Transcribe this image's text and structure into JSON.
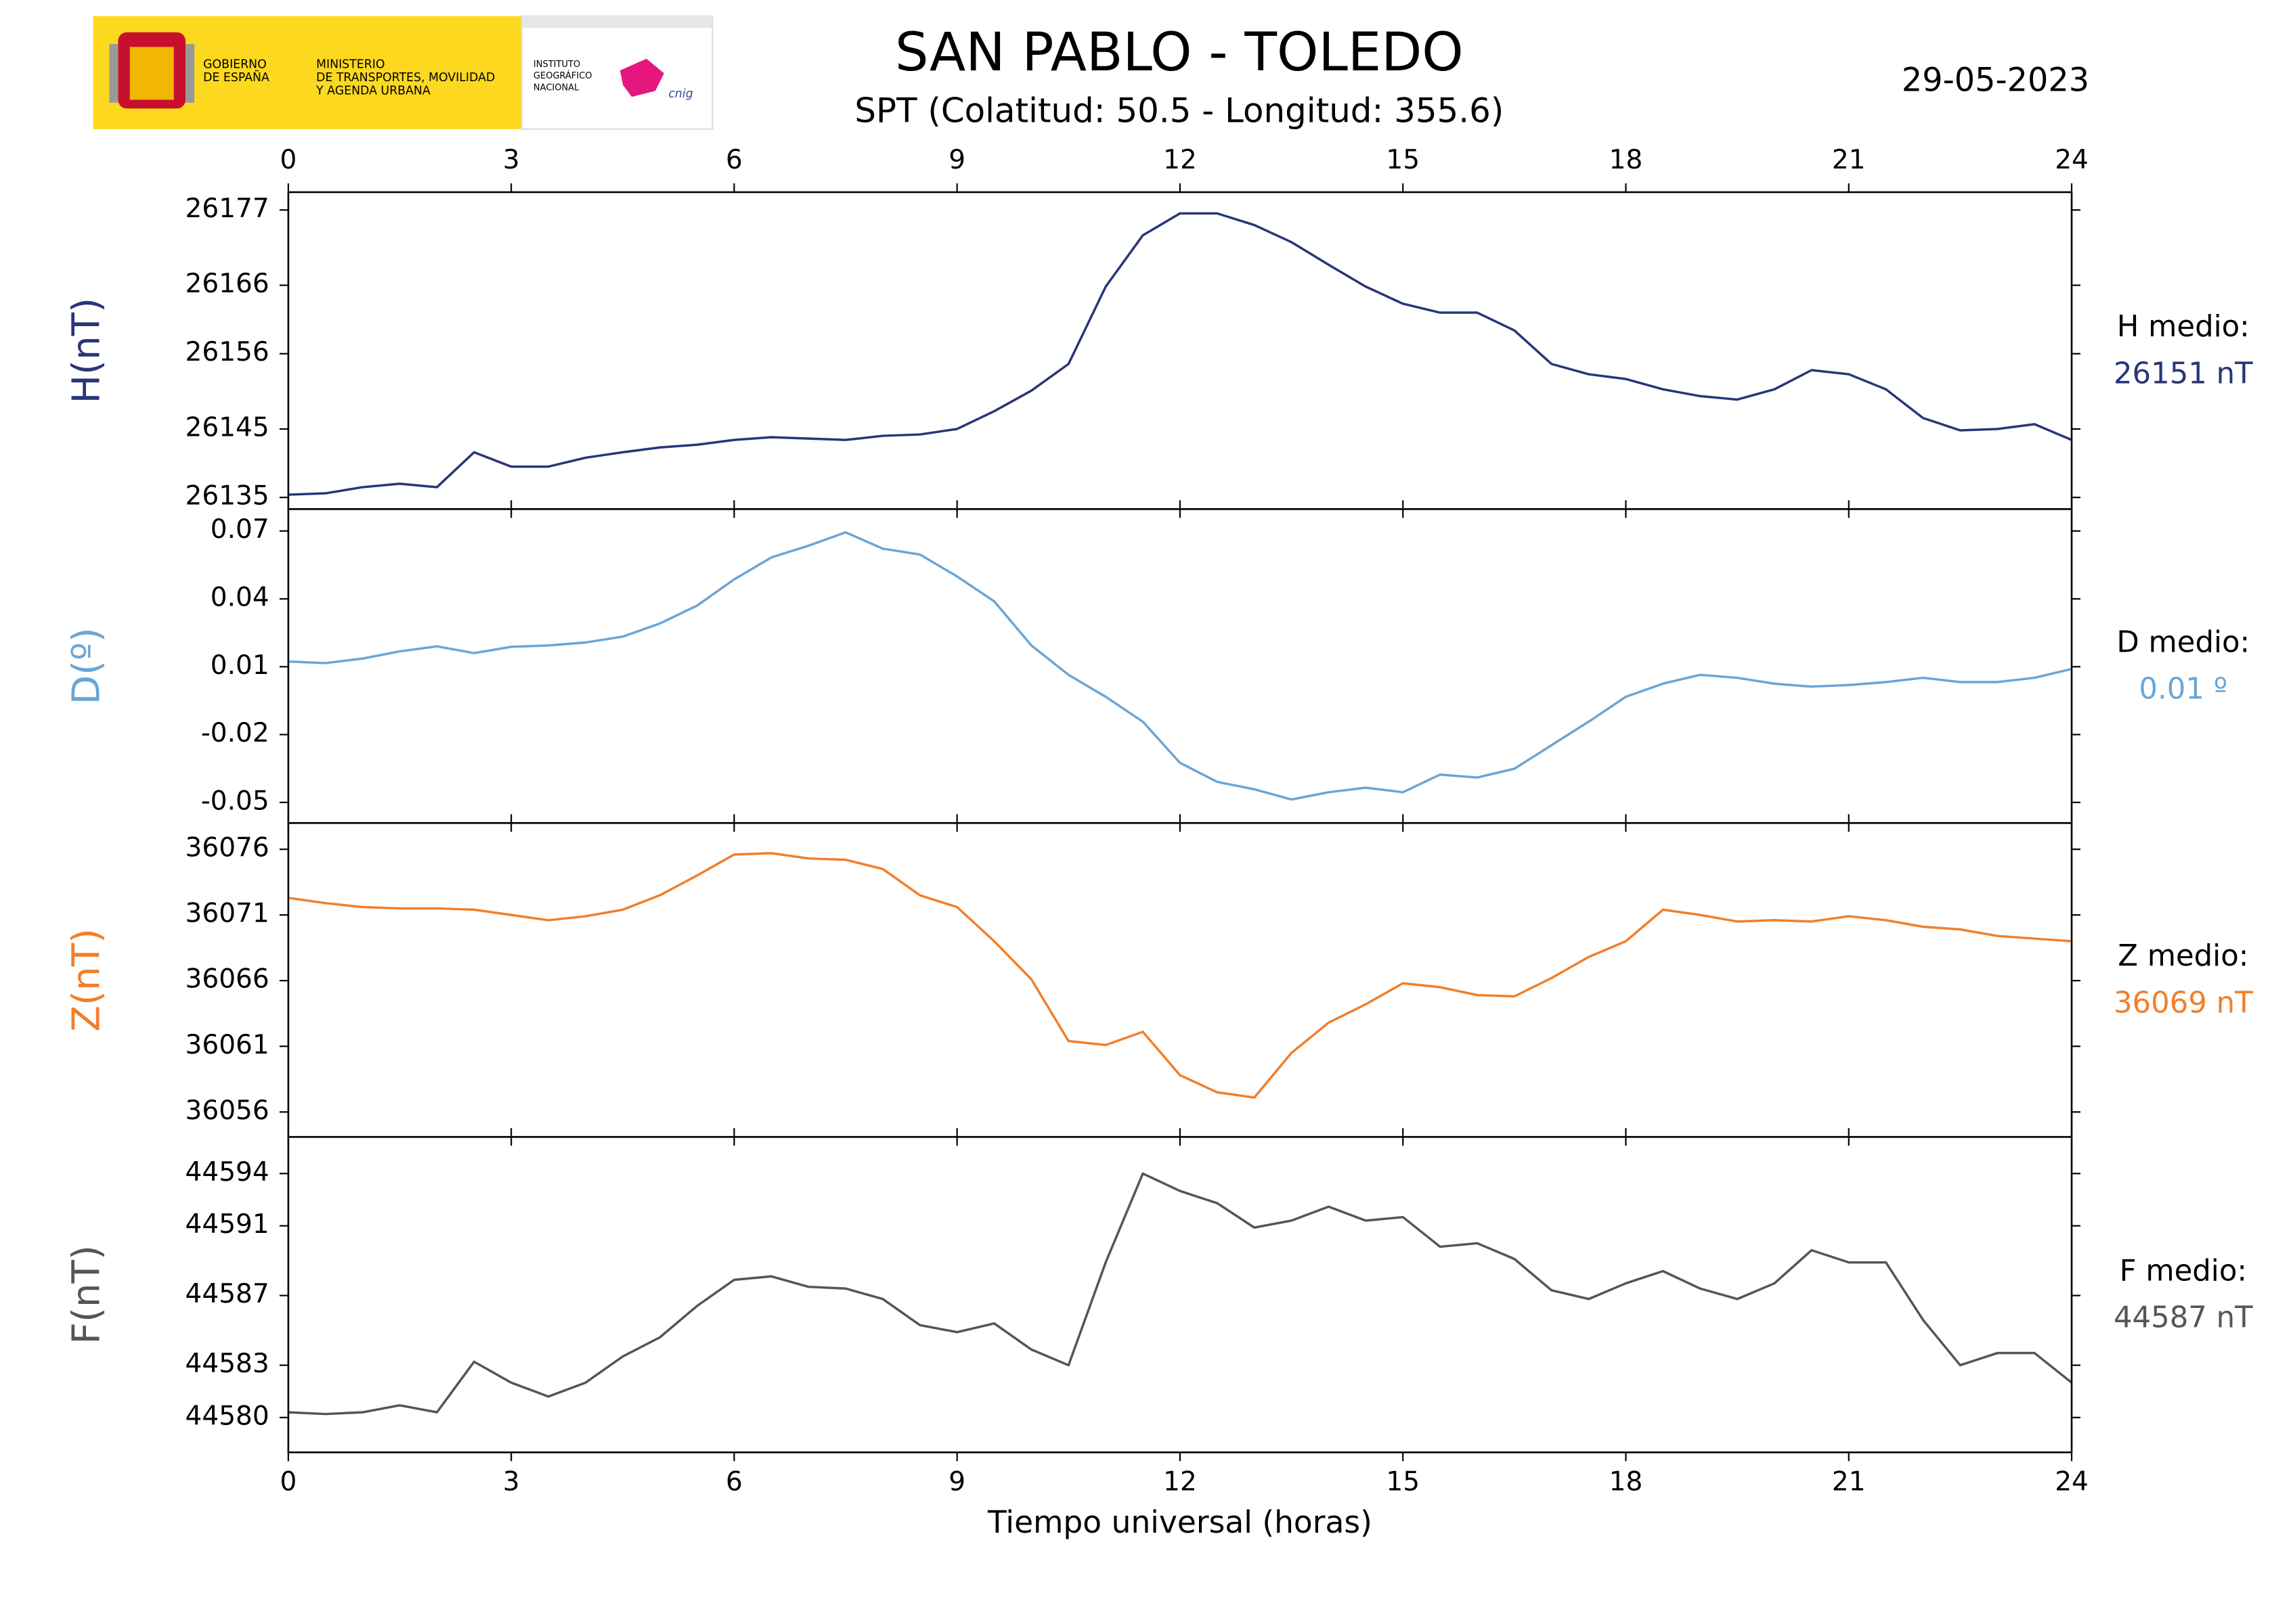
{
  "header": {
    "title": "SAN PABLO - TOLEDO",
    "subtitle": "SPT (Colatitud: 50.5 - Longitud: 355.6)",
    "date": "29-05-2023",
    "logo": {
      "government": [
        "GOBIERNO",
        "DE ESPAÑA"
      ],
      "ministry": [
        "MINISTERIO",
        "DE TRANSPORTES, MOVILIDAD",
        "Y AGENDA URBANA"
      ],
      "institute": [
        "INSTITUTO",
        "GEOGRÁFICO",
        "NACIONAL"
      ],
      "brand": "cnig"
    }
  },
  "chart_data": [
    {
      "type": "line",
      "ylabel": "H(nT)",
      "mean_label": "H medio:",
      "mean_value": "26151 nT",
      "color": "#283578",
      "xlim": [
        0,
        24
      ],
      "xticks": [
        0,
        3,
        6,
        9,
        12,
        15,
        18,
        21,
        24
      ],
      "ylim": [
        26133.3,
        26179.6
      ],
      "yticks": [
        26135,
        26145,
        26156,
        26166,
        26177
      ],
      "x": [
        0,
        0.5,
        1,
        1.5,
        2,
        2.5,
        3,
        3.5,
        4,
        4.5,
        5,
        5.5,
        6,
        6.5,
        7,
        7.5,
        8,
        8.5,
        9,
        9.5,
        10,
        10.5,
        11,
        11.5,
        12,
        12.5,
        13,
        13.5,
        14,
        14.5,
        15,
        15.5,
        16,
        16.5,
        17,
        17.5,
        18,
        18.5,
        19,
        19.5,
        20,
        20.5,
        21,
        21.5,
        22,
        22.5,
        23,
        23.5,
        24
      ],
      "values": [
        26135.4,
        26135.6,
        26136.5,
        26137,
        26136.5,
        26141.6,
        26139.5,
        26139.5,
        26140.8,
        26141.6,
        26142.3,
        26142.7,
        26143.4,
        26143.8,
        26143.6,
        26143.4,
        26144,
        26144.2,
        26145,
        26147.6,
        26150.6,
        26154.5,
        26165.8,
        26173.3,
        26176.5,
        26176.5,
        26174.8,
        26172.3,
        26169,
        26165.8,
        26163.3,
        26162,
        26162,
        26159.4,
        26154.5,
        26153,
        26152.3,
        26150.8,
        26149.8,
        26149.3,
        26150.8,
        26153.6,
        26153,
        26150.8,
        26146.6,
        26144.8,
        26145,
        26145.7,
        26143.4
      ]
    },
    {
      "type": "line",
      "ylabel": "D(º)",
      "mean_label": "D medio:",
      "mean_value": "0.01 º",
      "color": "#6aa5d6",
      "xlim": [
        0,
        24
      ],
      "xticks": [
        0,
        3,
        6,
        9,
        12,
        15,
        18,
        21,
        24
      ],
      "ylim": [
        -0.0591,
        0.0797
      ],
      "yticks": [
        -0.05,
        -0.02,
        0.01,
        0.04,
        0.07
      ],
      "x": [
        0,
        0.5,
        1,
        1.5,
        2,
        2.5,
        3,
        3.5,
        4,
        4.5,
        5,
        5.5,
        6,
        6.5,
        7,
        7.5,
        8,
        8.5,
        9,
        9.5,
        10,
        10.5,
        11,
        11.5,
        12,
        12.5,
        13,
        13.5,
        14,
        14.5,
        15,
        15.5,
        16,
        16.5,
        17,
        17.5,
        18,
        18.5,
        19,
        19.5,
        20,
        20.5,
        21,
        21.5,
        22,
        22.5,
        23,
        23.5,
        24
      ],
      "values": [
        0.0123,
        0.0116,
        0.0136,
        0.0168,
        0.019,
        0.016,
        0.0188,
        0.0194,
        0.0207,
        0.0233,
        0.0291,
        0.037,
        0.0486,
        0.0583,
        0.0635,
        0.0694,
        0.0622,
        0.0596,
        0.0499,
        0.0389,
        0.0194,
        0.0064,
        -0.0033,
        -0.0143,
        -0.0325,
        -0.0409,
        -0.0442,
        -0.0487,
        -0.0455,
        -0.0435,
        -0.0455,
        -0.0377,
        -0.039,
        -0.0351,
        -0.0247,
        -0.0143,
        -0.0033,
        0.0025,
        0.0064,
        0.0051,
        0.0025,
        0.0012,
        0.0019,
        0.0032,
        0.0051,
        0.0032,
        0.0032,
        0.0051,
        0.009
      ]
    },
    {
      "type": "line",
      "ylabel": "Z(nT)",
      "mean_label": "Z medio:",
      "mean_value": "36069 nT",
      "color": "#f07f2a",
      "xlim": [
        0,
        24
      ],
      "xticks": [
        0,
        3,
        6,
        9,
        12,
        15,
        18,
        21,
        24
      ],
      "ylim": [
        36054.1,
        36078.0
      ],
      "yticks": [
        36056,
        36061,
        36066,
        36071,
        36076
      ],
      "x": [
        0,
        0.5,
        1,
        1.5,
        2,
        2.5,
        3,
        3.5,
        4,
        4.5,
        5,
        5.5,
        6,
        6.5,
        7,
        7.5,
        8,
        8.5,
        9,
        9.5,
        10,
        10.5,
        11,
        11.5,
        12,
        12.5,
        13,
        13.5,
        14,
        14.5,
        15,
        15.5,
        16,
        16.5,
        17,
        17.5,
        18,
        18.5,
        19,
        19.5,
        20,
        20.5,
        21,
        21.5,
        22,
        22.5,
        23,
        23.5,
        24
      ],
      "values": [
        36072.3,
        36071.9,
        36071.6,
        36071.5,
        36071.5,
        36071.4,
        36071.0,
        36070.6,
        36070.9,
        36071.4,
        36072.5,
        36074.0,
        36075.6,
        36075.7,
        36075.3,
        36075.2,
        36074.5,
        36072.5,
        36071.6,
        36069.0,
        36066.1,
        36061.4,
        36061.1,
        36062.1,
        36058.8,
        36057.5,
        36057.1,
        36060.5,
        36062.8,
        36064.2,
        36065.8,
        36065.5,
        36064.9,
        36064.8,
        36066.2,
        36067.8,
        36069.0,
        36071.4,
        36071.0,
        36070.5,
        36070.6,
        36070.5,
        36070.9,
        36070.6,
        36070.1,
        36069.9,
        36069.4,
        36069.2,
        36069.0
      ]
    },
    {
      "type": "line",
      "ylabel": "F(nT)",
      "mean_label": "F medio:",
      "mean_value": "44587 nT",
      "color": "#555555",
      "xlabel": "Tiempo universal (horas)",
      "xlim": [
        0,
        24
      ],
      "xticks": [
        0,
        3,
        6,
        9,
        12,
        15,
        18,
        21,
        24
      ],
      "ylim": [
        44578.0,
        44596.1
      ],
      "yticks": [
        44580,
        44583,
        44587,
        44591,
        44594
      ],
      "x": [
        0,
        0.5,
        1,
        1.5,
        2,
        2.5,
        3,
        3.5,
        4,
        4.5,
        5,
        5.5,
        6,
        6.5,
        7,
        7.5,
        8,
        8.5,
        9,
        9.5,
        10,
        10.5,
        11,
        11.5,
        12,
        12.5,
        13,
        13.5,
        14,
        14.5,
        15,
        15.5,
        16,
        16.5,
        17,
        17.5,
        18,
        18.5,
        19,
        19.5,
        20,
        20.5,
        21,
        21.5,
        22,
        22.5,
        23,
        23.5,
        24
      ],
      "values": [
        44580.3,
        44580.2,
        44580.3,
        44580.7,
        44580.3,
        44583.2,
        44582.0,
        44581.2,
        44582.0,
        44583.5,
        44584.6,
        44586.4,
        44587.9,
        44588.1,
        44587.5,
        44587.4,
        44586.8,
        44585.3,
        44584.9,
        44585.4,
        44583.9,
        44583.0,
        44588.9,
        44594,
        44593.0,
        44592.3,
        44590.9,
        44591.3,
        44592.1,
        44591.3,
        44591.5,
        44589.8,
        44590.0,
        44589.1,
        44587.3,
        44586.8,
        44587.7,
        44588.4,
        44587.4,
        44586.8,
        44587.7,
        44589.6,
        44588.9,
        44588.9,
        44585.6,
        44583.0,
        44583.7,
        44583.7,
        44582.0
      ]
    }
  ]
}
